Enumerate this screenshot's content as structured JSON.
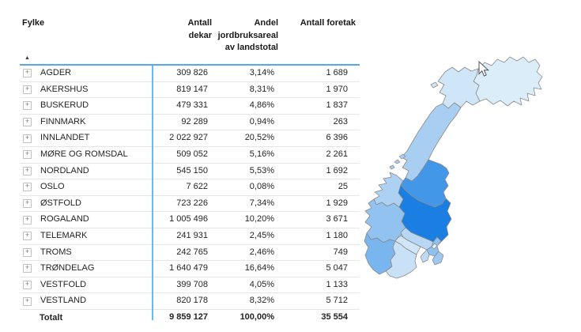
{
  "table": {
    "columns": [
      {
        "label": "Fylke",
        "align": "left"
      },
      {
        "label": "Antall dekar",
        "align": "right"
      },
      {
        "label": "Andel jordbruksareal av landstotal",
        "align": "right"
      },
      {
        "label": "Antall foretak",
        "align": "right"
      }
    ],
    "sort_icon": "▲",
    "expand_icon": "+",
    "rows": [
      {
        "fylke": "AGDER",
        "dekar": "309 826",
        "andel": "3,14%",
        "foretak": "1 689"
      },
      {
        "fylke": "AKERSHUS",
        "dekar": "819 147",
        "andel": "8,31%",
        "foretak": "1 970"
      },
      {
        "fylke": "BUSKERUD",
        "dekar": "479 331",
        "andel": "4,86%",
        "foretak": "1 837"
      },
      {
        "fylke": "FINNMARK",
        "dekar": "92 289",
        "andel": "0,94%",
        "foretak": "263"
      },
      {
        "fylke": "INNLANDET",
        "dekar": "2 022 927",
        "andel": "20,52%",
        "foretak": "6 396"
      },
      {
        "fylke": "MØRE OG ROMSDAL",
        "dekar": "509 052",
        "andel": "5,16%",
        "foretak": "2 261"
      },
      {
        "fylke": "NORDLAND",
        "dekar": "545 150",
        "andel": "5,53%",
        "foretak": "1 692"
      },
      {
        "fylke": "OSLO",
        "dekar": "7 622",
        "andel": "0,08%",
        "foretak": "25"
      },
      {
        "fylke": "ØSTFOLD",
        "dekar": "723 226",
        "andel": "7,34%",
        "foretak": "1 929"
      },
      {
        "fylke": "ROGALAND",
        "dekar": "1 005 496",
        "andel": "10,20%",
        "foretak": "3 671"
      },
      {
        "fylke": "TELEMARK",
        "dekar": "241 931",
        "andel": "2,45%",
        "foretak": "1 180"
      },
      {
        "fylke": "TROMS",
        "dekar": "242 765",
        "andel": "2,46%",
        "foretak": "749"
      },
      {
        "fylke": "TRØNDELAG",
        "dekar": "1 640 479",
        "andel": "16,64%",
        "foretak": "5 047"
      },
      {
        "fylke": "VESTFOLD",
        "dekar": "399 708",
        "andel": "4,05%",
        "foretak": "1 133"
      },
      {
        "fylke": "VESTLAND",
        "dekar": "820 178",
        "andel": "8,32%",
        "foretak": "5 712"
      }
    ],
    "total": {
      "fylke": "Totalt",
      "dekar": "9 859 127",
      "andel": "100,00%",
      "foretak": "35 554"
    }
  },
  "map": {
    "border_color": "#8A8A8A",
    "regions": [
      {
        "name": "FINNMARK",
        "color": "#DCEDFA"
      },
      {
        "name": "TROMS",
        "color": "#CFE5F8"
      },
      {
        "name": "NORDLAND",
        "color": "#A8CEF2"
      },
      {
        "name": "TRØNDELAG",
        "color": "#4397E9"
      },
      {
        "name": "MØRE OG ROMSDAL",
        "color": "#ADD1F3"
      },
      {
        "name": "INNLANDET",
        "color": "#1B7EE2"
      },
      {
        "name": "VESTLAND",
        "color": "#92C3F0"
      },
      {
        "name": "ROGALAND",
        "color": "#79B5EF"
      },
      {
        "name": "AGDER",
        "color": "#C9E1F7"
      },
      {
        "name": "TELEMARK",
        "color": "#D0E5F8"
      },
      {
        "name": "BUSKERUD",
        "color": "#B7D7F4"
      },
      {
        "name": "AKERSHUS",
        "color": "#8FC1F0"
      },
      {
        "name": "OSLO",
        "color": "#E4F1FB"
      },
      {
        "name": "ØSTFOLD",
        "color": "#9CC8F1"
      },
      {
        "name": "VESTFOLD",
        "color": "#BEDBF5"
      }
    ]
  },
  "accent": {
    "table_line_blue": "#55AAE9",
    "column_divider_blue": "#6CB8F0"
  },
  "chart_data": [
    {
      "type": "table",
      "title": "Jordbruksareal og foretak per fylke",
      "columns": [
        "Fylke",
        "Antall dekar",
        "Andel jordbruksareal av landstotal",
        "Antall foretak"
      ],
      "rows": [
        [
          "AGDER",
          309826,
          3.14,
          1689
        ],
        [
          "AKERSHUS",
          819147,
          8.31,
          1970
        ],
        [
          "BUSKERUD",
          479331,
          4.86,
          1837
        ],
        [
          "FINNMARK",
          92289,
          0.94,
          263
        ],
        [
          "INNLANDET",
          2022927,
          20.52,
          6396
        ],
        [
          "MØRE OG ROMSDAL",
          509052,
          5.16,
          2261
        ],
        [
          "NORDLAND",
          545150,
          5.53,
          1692
        ],
        [
          "OSLO",
          7622,
          0.08,
          25
        ],
        [
          "ØSTFOLD",
          723226,
          7.34,
          1929
        ],
        [
          "ROGALAND",
          1005496,
          10.2,
          3671
        ],
        [
          "TELEMARK",
          241931,
          2.45,
          1180
        ],
        [
          "TROMS",
          242765,
          2.46,
          749
        ],
        [
          "TRØNDELAG",
          1640479,
          16.64,
          5047
        ],
        [
          "VESTFOLD",
          399708,
          4.05,
          1133
        ],
        [
          "VESTLAND",
          820178,
          8.32,
          5712
        ]
      ],
      "total": [
        "Totalt",
        9859127,
        100.0,
        35554
      ]
    },
    {
      "type": "heatmap",
      "subtype": "choropleth",
      "region": "Norway fylker",
      "metric": "Andel jordbruksareal av landstotal (%)",
      "color_scale": [
        "#E4F1FB",
        "#1B7EE2"
      ],
      "points": [
        {
          "name": "AGDER",
          "value": 3.14
        },
        {
          "name": "AKERSHUS",
          "value": 8.31
        },
        {
          "name": "BUSKERUD",
          "value": 4.86
        },
        {
          "name": "FINNMARK",
          "value": 0.94
        },
        {
          "name": "INNLANDET",
          "value": 20.52
        },
        {
          "name": "MØRE OG ROMSDAL",
          "value": 5.16
        },
        {
          "name": "NORDLAND",
          "value": 5.53
        },
        {
          "name": "OSLO",
          "value": 0.08
        },
        {
          "name": "ØSTFOLD",
          "value": 7.34
        },
        {
          "name": "ROGALAND",
          "value": 10.2
        },
        {
          "name": "TELEMARK",
          "value": 2.45
        },
        {
          "name": "TROMS",
          "value": 2.46
        },
        {
          "name": "TRØNDELAG",
          "value": 16.64
        },
        {
          "name": "VESTFOLD",
          "value": 4.05
        },
        {
          "name": "VESTLAND",
          "value": 8.32
        }
      ]
    }
  ]
}
